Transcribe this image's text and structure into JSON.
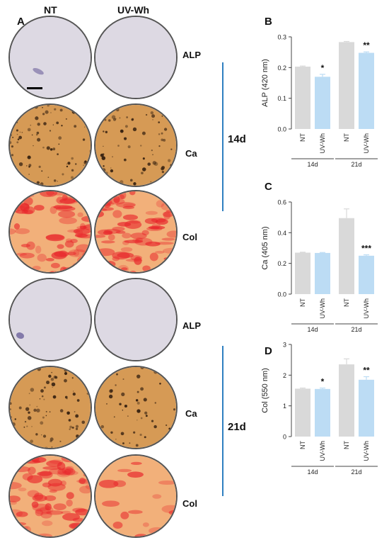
{
  "panelA": {
    "letter": "A",
    "col_headers": [
      "NT",
      "UV-Wh"
    ],
    "rows": [
      {
        "stain": "ALP",
        "type": "alp",
        "levels": [
          0.7,
          0.2
        ]
      },
      {
        "stain": "Ca",
        "type": "ca",
        "levels": [
          0.8,
          0.6
        ]
      },
      {
        "stain": "Col",
        "type": "col",
        "levels": [
          0.9,
          0.85
        ]
      },
      {
        "stain": "ALP",
        "type": "alp",
        "levels": [
          0.6,
          0.15
        ]
      },
      {
        "stain": "Ca",
        "type": "ca",
        "levels": [
          0.8,
          0.5
        ]
      },
      {
        "stain": "Col",
        "type": "col",
        "levels": [
          0.8,
          0.2
        ]
      }
    ],
    "time_labels": [
      "14d",
      "21d"
    ],
    "colors": {
      "alp_bg": "#ddd9e3",
      "alp_mark": "#4b3f86",
      "ca_bg": "#d69a55",
      "ca_mark": "#3a2412",
      "col_bg": "#f2b07a",
      "col_mark": "#e8262b",
      "timeline": "#2f7fc0"
    }
  },
  "chart_data": [
    {
      "letter": "B",
      "type": "bar",
      "ylabel": "ALP (420 nm)",
      "ylim": [
        0,
        0.3
      ],
      "yticks": [
        "0.0",
        "0.1",
        "0.2",
        "0.3"
      ],
      "ytick_values": [
        0,
        0.1,
        0.2,
        0.3
      ],
      "categories": [
        "NT",
        "UV-Wh",
        "NT",
        "UV-Wh"
      ],
      "groups": [
        "14d",
        "21d"
      ],
      "values": [
        0.203,
        0.17,
        0.283,
        0.248
      ],
      "errors": [
        0.002,
        0.008,
        0.002,
        0.003
      ],
      "significance": [
        "",
        "*",
        "",
        "**"
      ]
    },
    {
      "letter": "C",
      "type": "bar",
      "ylabel": "Ca (405 nm)",
      "ylim": [
        0,
        0.6
      ],
      "yticks": [
        "0.0",
        "0.2",
        "0.4",
        "0.6"
      ],
      "ytick_values": [
        0,
        0.2,
        0.4,
        0.6
      ],
      "categories": [
        "NT",
        "UV-Wh",
        "NT",
        "UV-Wh"
      ],
      "groups": [
        "14d",
        "21d"
      ],
      "values": [
        0.27,
        0.268,
        0.495,
        0.25
      ],
      "errors": [
        0.003,
        0.003,
        0.06,
        0.006
      ],
      "significance": [
        "",
        "",
        "",
        "***"
      ]
    },
    {
      "letter": "D",
      "type": "bar",
      "ylabel": "Col (550 nm)",
      "ylim": [
        0,
        3
      ],
      "yticks": [
        "0",
        "1",
        "2",
        "3"
      ],
      "ytick_values": [
        0,
        1,
        2,
        3
      ],
      "categories": [
        "NT",
        "UV-Wh",
        "NT",
        "UV-Wh"
      ],
      "groups": [
        "14d",
        "21d"
      ],
      "values": [
        1.56,
        1.55,
        2.35,
        1.85
      ],
      "errors": [
        0.02,
        0.03,
        0.18,
        0.1
      ],
      "significance": [
        "",
        "*",
        "",
        "**"
      ]
    }
  ],
  "colors": {
    "nt_bar": "#d9d9d9",
    "uv_bar": "#bcdcf4"
  }
}
